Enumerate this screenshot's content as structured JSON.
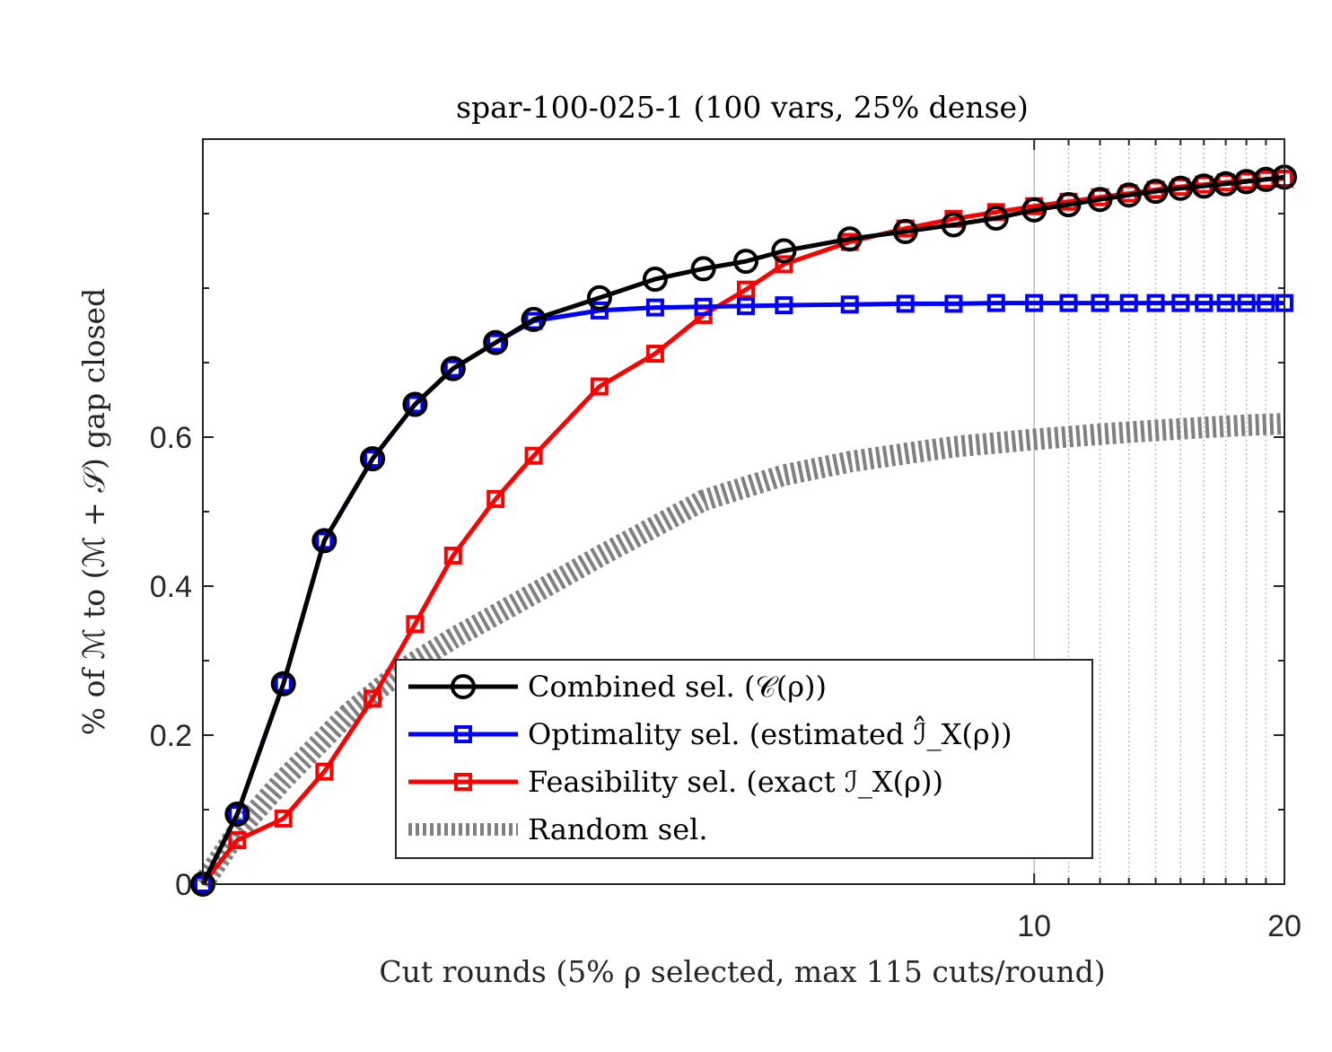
{
  "chart_data": {
    "type": "line",
    "title": "spar-100-025-1 (100 vars, 25% dense)",
    "xlabel": "Cut rounds (5% ρ selected, max 115 cuts/round)",
    "ylabel": "% of ℳ to (ℳ + 𝒮) gap closed",
    "xscale": "log",
    "xlim": [
      1,
      20
    ],
    "ylim": [
      0,
      1
    ],
    "x_ticks": [
      {
        "value": 10,
        "label": "10"
      },
      {
        "value": 20,
        "label": "20"
      }
    ],
    "y_ticks": [
      {
        "value": 0,
        "label": "0"
      },
      {
        "value": 0.2,
        "label": "0.2"
      },
      {
        "value": 0.4,
        "label": "0.4"
      },
      {
        "value": 0.6,
        "label": "0.6"
      }
    ],
    "x_gridlines": [
      10,
      11,
      12,
      13,
      14,
      15,
      16,
      17,
      18,
      19
    ],
    "legend_position": "bottom-right (inside)",
    "series": [
      {
        "name": "Combined sel. (𝒞(ρ))",
        "color": "#000000",
        "marker": "circle",
        "style": "solid",
        "x": [
          1,
          1.1,
          1.25,
          1.4,
          1.6,
          1.8,
          2,
          2.25,
          2.5,
          3,
          3.5,
          4,
          4.5,
          5,
          6,
          7,
          8,
          9,
          10,
          11,
          12,
          13,
          14,
          15,
          16,
          17,
          18,
          19,
          20
        ],
        "y": [
          0,
          0.094,
          0.269,
          0.461,
          0.571,
          0.644,
          0.692,
          0.727,
          0.758,
          0.787,
          0.812,
          0.826,
          0.836,
          0.85,
          0.866,
          0.876,
          0.885,
          0.894,
          0.905,
          0.912,
          0.919,
          0.925,
          0.93,
          0.934,
          0.937,
          0.94,
          0.943,
          0.946,
          0.949
        ]
      },
      {
        "name": "Optimality sel. (estimated ℐ̂_X(ρ))",
        "color": "#0000ff",
        "marker": "square",
        "style": "solid",
        "x": [
          1,
          1.1,
          1.25,
          1.4,
          1.6,
          1.8,
          2,
          2.25,
          2.5,
          3,
          3.5,
          4,
          4.5,
          5,
          6,
          7,
          8,
          9,
          10,
          11,
          12,
          13,
          14,
          15,
          16,
          17,
          18,
          19,
          20
        ],
        "y": [
          0,
          0.094,
          0.269,
          0.461,
          0.571,
          0.644,
          0.692,
          0.727,
          0.756,
          0.77,
          0.774,
          0.775,
          0.776,
          0.777,
          0.778,
          0.779,
          0.779,
          0.78,
          0.78,
          0.78,
          0.78,
          0.78,
          0.78,
          0.78,
          0.78,
          0.78,
          0.78,
          0.78,
          0.78
        ]
      },
      {
        "name": "Feasibility sel. (exact ℐ_X(ρ))",
        "color": "#ff0000",
        "marker": "square",
        "style": "solid",
        "x": [
          1,
          1.1,
          1.25,
          1.4,
          1.6,
          1.8,
          2,
          2.25,
          2.5,
          3,
          3.5,
          4,
          4.5,
          5,
          6,
          7,
          8,
          9,
          10,
          11,
          12,
          13,
          14,
          15,
          16,
          17,
          18,
          19,
          20
        ],
        "y": [
          0,
          0.059,
          0.088,
          0.151,
          0.249,
          0.349,
          0.441,
          0.517,
          0.575,
          0.668,
          0.712,
          0.764,
          0.798,
          0.832,
          0.862,
          0.88,
          0.893,
          0.902,
          0.91,
          0.916,
          0.922,
          0.927,
          0.932,
          0.936,
          0.939,
          0.942,
          0.944,
          0.946,
          0.947
        ]
      },
      {
        "name": "Random sel.",
        "color": "#808080",
        "marker": "none",
        "style": "dotted-thick",
        "x": [
          1,
          1.1,
          1.25,
          1.5,
          1.75,
          2,
          2.5,
          3,
          4,
          5,
          6,
          7,
          8,
          10,
          12,
          14,
          16,
          18,
          20
        ],
        "y": [
          0,
          0.07,
          0.14,
          0.23,
          0.29,
          0.33,
          0.39,
          0.44,
          0.515,
          0.549,
          0.567,
          0.578,
          0.587,
          0.597,
          0.604,
          0.609,
          0.613,
          0.616,
          0.618
        ]
      }
    ]
  }
}
